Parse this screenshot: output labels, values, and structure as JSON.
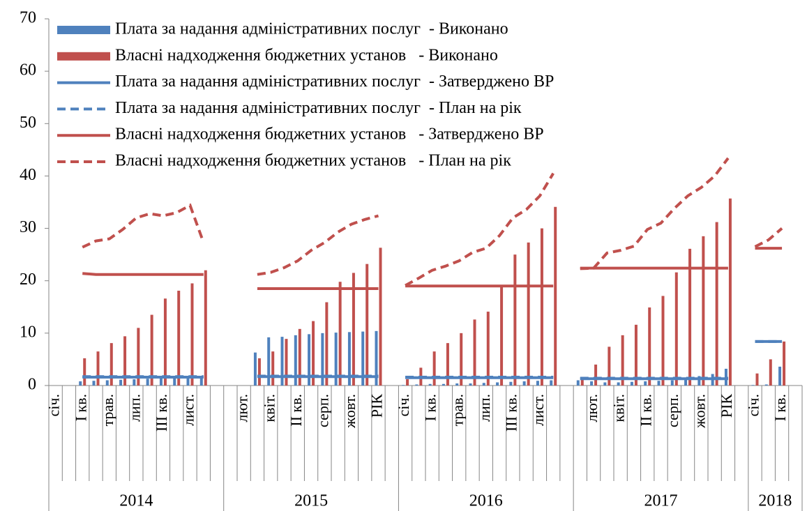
{
  "chart_data": {
    "type": "bar",
    "ylim": [
      0,
      70
    ],
    "yticks": [
      0,
      10,
      20,
      30,
      40,
      50,
      60,
      70
    ],
    "categories": [
      "січ.",
      null,
      "І кв.",
      null,
      "трав.",
      null,
      "лип.",
      null,
      "ІІІ кв.",
      null,
      "лист.",
      null,
      null,
      null,
      "лют.",
      null,
      "квіт.",
      null,
      "ІІ кв.",
      null,
      "серп.",
      null,
      "жовт.",
      null,
      "РІК",
      null,
      "січ.",
      null,
      "І кв.",
      null,
      "трав.",
      null,
      "лип.",
      null,
      "ІІІ кв.",
      null,
      "лист.",
      null,
      null,
      null,
      "лют.",
      null,
      "квіт.",
      null,
      "ІІ кв.",
      null,
      "серп.",
      null,
      "жовт.",
      null,
      "РІК",
      null,
      "січ.",
      null,
      "І кв.",
      null
    ],
    "x_groups": [
      "2014",
      "2015",
      "2016",
      "2017",
      "2018"
    ],
    "series": [
      {
        "name": "Плата за надання адміністративних послуг  - Виконано",
        "type": "bar",
        "color": "#4f81bd",
        "values": [
          null,
          null,
          0.8,
          0.9,
          1.0,
          1.1,
          1.2,
          1.3,
          1.4,
          1.5,
          1.6,
          1.7,
          null,
          null,
          null,
          6.3,
          9.2,
          9.3,
          9.6,
          9.8,
          10,
          10.1,
          10.2,
          10.3,
          10.4,
          null,
          0.1,
          0.2,
          0.3,
          0.3,
          0.4,
          0.4,
          0.5,
          0.6,
          0.7,
          0.8,
          0.9,
          1.0,
          null,
          1.0,
          0.8,
          0.6,
          0.6,
          0.7,
          0.8,
          0.9,
          1.0,
          1.2,
          1.8,
          2.2,
          3.2,
          null,
          0.1,
          0.2,
          3.6,
          null
        ]
      },
      {
        "name": "Власні надходження бюджетних установ   - Виконано",
        "type": "bar",
        "color": "#c0504d",
        "values": [
          null,
          null,
          5.2,
          6.5,
          8.1,
          9.4,
          11,
          13.5,
          16.6,
          18.1,
          19.5,
          22,
          null,
          null,
          null,
          5.2,
          6.5,
          8.9,
          10.8,
          12.3,
          15.9,
          19.8,
          21.5,
          23.2,
          26.3,
          null,
          1.2,
          3.4,
          6.5,
          8.1,
          10,
          12.6,
          14.1,
          18.9,
          25,
          27.3,
          30,
          34.1,
          null,
          1.5,
          4.0,
          7.4,
          9.6,
          11.6,
          14.9,
          17.1,
          21.6,
          26.1,
          28.5,
          31.2,
          35.7,
          null,
          2.3,
          5.0,
          8.4,
          null
        ]
      },
      {
        "name": "Плата за надання адміністративних послуг  - Затверджено ВР",
        "type": "line",
        "dashed": false,
        "color": "#4f81bd",
        "values": [
          null,
          null,
          1.6,
          1.6,
          1.6,
          1.6,
          1.6,
          1.6,
          1.6,
          1.6,
          1.6,
          1.6,
          null,
          null,
          null,
          1.7,
          1.7,
          1.7,
          1.7,
          1.7,
          1.7,
          1.7,
          1.7,
          1.7,
          1.7,
          null,
          1.5,
          1.5,
          1.5,
          1.5,
          1.5,
          1.5,
          1.5,
          1.5,
          1.5,
          1.5,
          1.5,
          1.5,
          null,
          1.3,
          1.3,
          1.3,
          1.3,
          1.3,
          1.3,
          1.3,
          1.3,
          1.3,
          1.3,
          1.3,
          1.3,
          null,
          8.4,
          8.4,
          8.4,
          null
        ]
      },
      {
        "name": "Плата за надання адміністративних послуг  - План на рік",
        "type": "line",
        "dashed": true,
        "color": "#4f81bd",
        "values": [
          null,
          null,
          1.7,
          1.7,
          1.7,
          1.7,
          1.7,
          1.7,
          1.7,
          1.7,
          1.7,
          1.7,
          null,
          null,
          null,
          1.8,
          1.8,
          1.8,
          1.8,
          1.8,
          1.8,
          1.8,
          1.8,
          1.8,
          1.8,
          null,
          1.6,
          1.6,
          1.6,
          1.6,
          1.6,
          1.6,
          1.6,
          1.6,
          1.6,
          1.6,
          1.6,
          1.6,
          null,
          1.4,
          1.4,
          1.4,
          1.4,
          1.4,
          1.4,
          1.4,
          1.4,
          1.4,
          1.4,
          1.4,
          1.4,
          null,
          8.4,
          8.4,
          8.4,
          null
        ]
      },
      {
        "name": "Власні надходження бюджетних установ   - Затверджено ВР",
        "type": "line",
        "dashed": false,
        "color": "#c0504d",
        "values": [
          null,
          null,
          21.4,
          21.2,
          21.2,
          21.2,
          21.2,
          21.2,
          21.2,
          21.2,
          21.2,
          21.2,
          null,
          null,
          null,
          18.5,
          18.5,
          18.5,
          18.5,
          18.5,
          18.5,
          18.5,
          18.5,
          18.5,
          18.5,
          null,
          19,
          19,
          19,
          19,
          19,
          19,
          19,
          19,
          19,
          19,
          19,
          19,
          null,
          22.4,
          22.4,
          22.4,
          22.4,
          22.4,
          22.4,
          22.4,
          22.4,
          22.4,
          22.4,
          22.4,
          22.4,
          null,
          26.2,
          26.2,
          26.2,
          null
        ]
      },
      {
        "name": "Власні надходження бюджетних установ   - План на рік",
        "type": "line",
        "dashed": true,
        "color": "#c0504d",
        "values": [
          null,
          null,
          26.4,
          27.6,
          28,
          29.8,
          32,
          32.8,
          32.4,
          33,
          34.4,
          27.3,
          null,
          null,
          null,
          21.2,
          21.6,
          22.5,
          23.8,
          25.8,
          27.3,
          29.3,
          30.8,
          31.7,
          32.4,
          null,
          19.1,
          20.5,
          22,
          22.8,
          23.8,
          25.4,
          26.2,
          28.6,
          32,
          33.6,
          36.2,
          40.5,
          null,
          22.3,
          22.4,
          25.3,
          25.8,
          26.6,
          29.8,
          31,
          33.8,
          36.2,
          37.8,
          40,
          43.4,
          null,
          26.5,
          27.8,
          30,
          null
        ]
      }
    ]
  }
}
